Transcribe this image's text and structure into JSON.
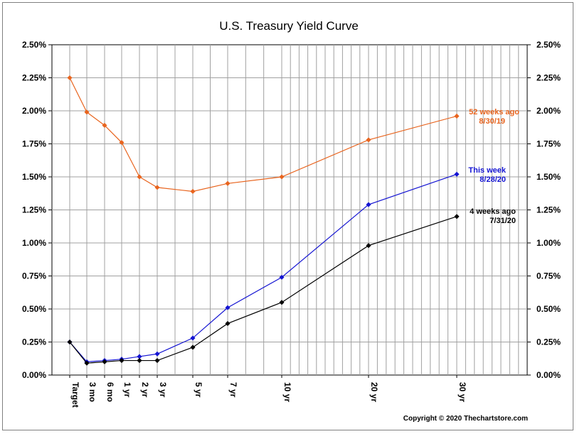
{
  "chart_data": {
    "type": "line",
    "title": "U.S. Treasury Yield Curve",
    "copyright": "Copyright © 2020 Thechartstore.com",
    "categories": [
      "Target",
      "3 mo",
      "6 mo",
      "1 yr",
      "2 yr",
      "3 yr",
      "5 yr",
      "7 yr",
      "10 yr",
      "20 yr",
      "30 yr"
    ],
    "x_years": [
      0,
      0.25,
      0.5,
      1,
      2,
      3,
      5,
      7,
      10,
      20,
      30
    ],
    "ylim": [
      0,
      2.5
    ],
    "yticks": [
      "0.00%",
      "0.25%",
      "0.50%",
      "0.75%",
      "1.00%",
      "1.25%",
      "1.50%",
      "1.75%",
      "2.00%",
      "2.25%",
      "2.50%"
    ],
    "grid": true,
    "series": [
      {
        "label_line1": "52 weeks ago",
        "label_line2": "8/30/19",
        "color": "#e8641e",
        "values": [
          2.25,
          1.99,
          1.89,
          1.76,
          1.5,
          1.42,
          1.39,
          1.45,
          1.5,
          1.78,
          1.96
        ]
      },
      {
        "label_line1": "This week",
        "label_line2": "8/28/20",
        "color": "#1414d2",
        "values": [
          0.25,
          0.1,
          0.11,
          0.12,
          0.14,
          0.16,
          0.28,
          0.51,
          0.74,
          1.29,
          1.52
        ]
      },
      {
        "label_line1": "4 weeks ago",
        "label_line2": "7/31/20",
        "color": "#000000",
        "values": [
          0.25,
          0.09,
          0.1,
          0.11,
          0.11,
          0.11,
          0.21,
          0.39,
          0.55,
          0.98,
          1.2
        ]
      }
    ]
  }
}
